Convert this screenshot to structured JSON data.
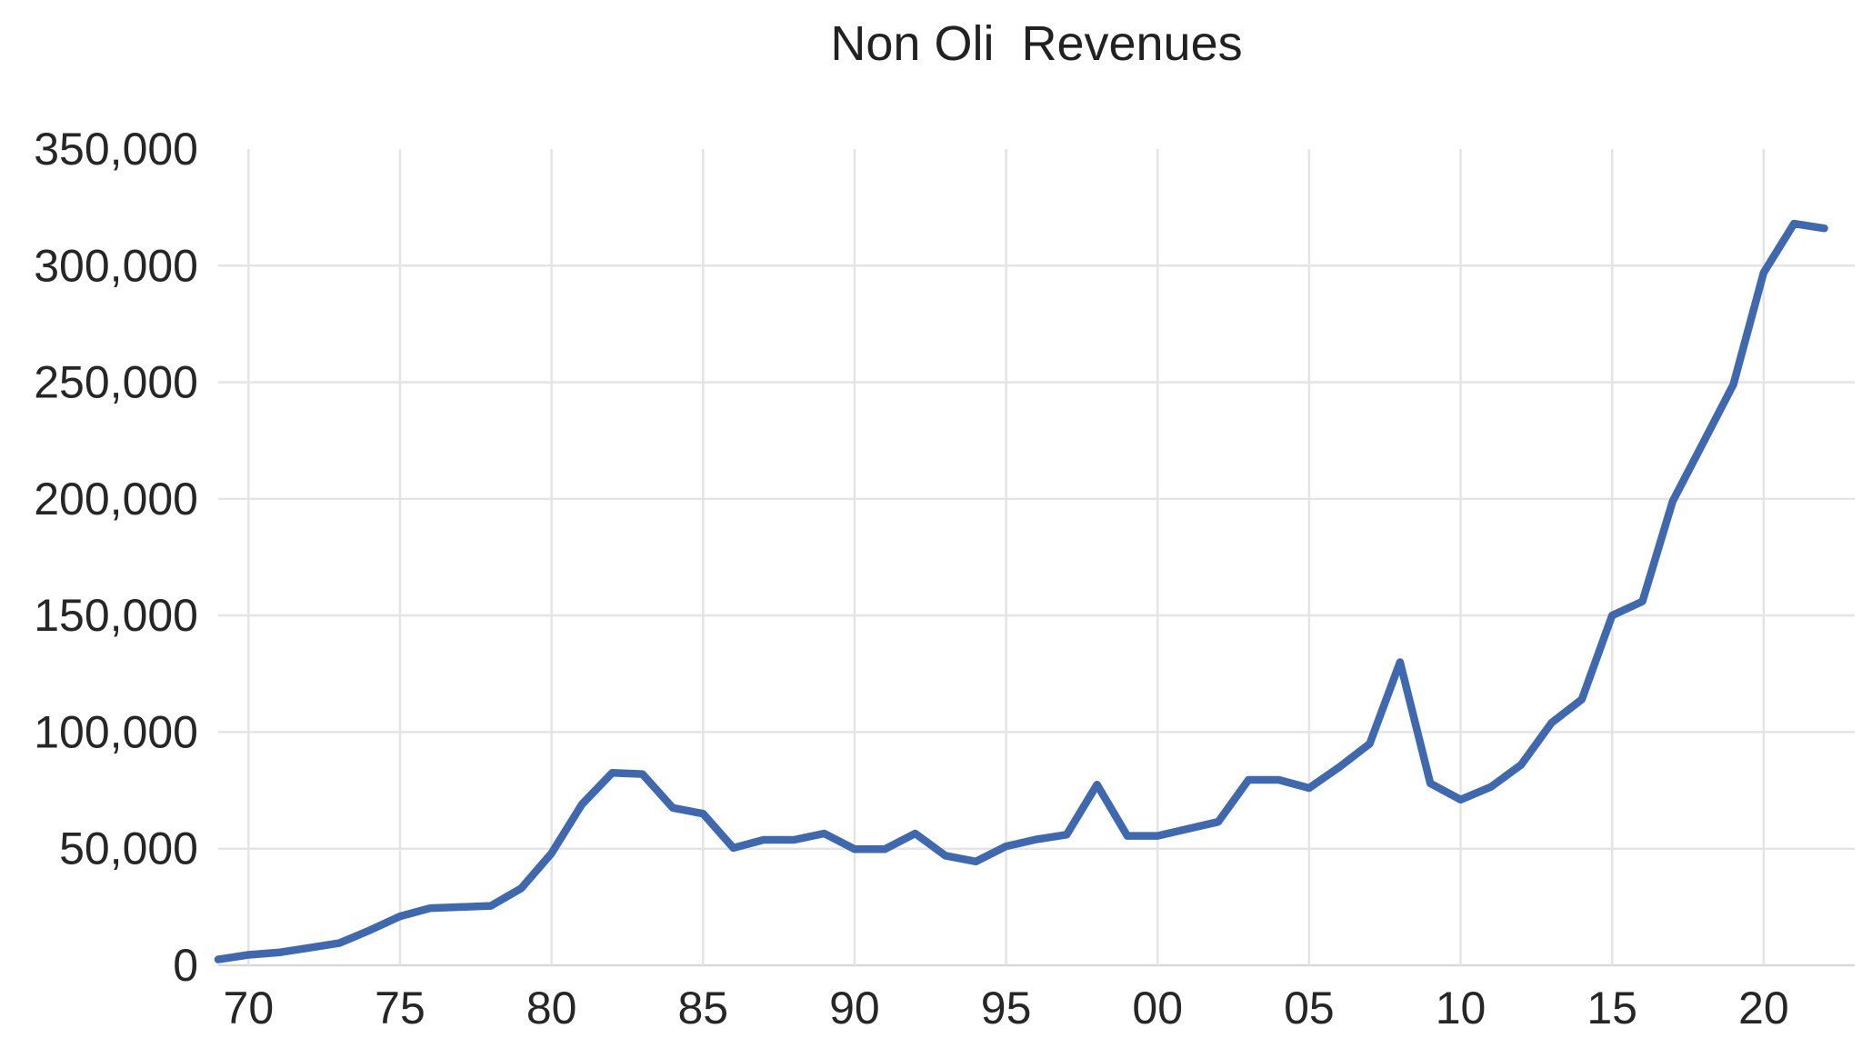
{
  "chart_data": {
    "type": "line",
    "title": "Non Oli  Revenues",
    "xlabel": "",
    "ylabel": "",
    "legend": false,
    "grid": true,
    "xlim": [
      1969,
      2022
    ],
    "ylim": [
      0,
      350000
    ],
    "x": [
      1969,
      1970,
      1971,
      1972,
      1973,
      1974,
      1975,
      1976,
      1977,
      1978,
      1979,
      1980,
      1981,
      1982,
      1983,
      1984,
      1985,
      1986,
      1987,
      1988,
      1989,
      1990,
      1991,
      1992,
      1993,
      1994,
      1995,
      1996,
      1997,
      1998,
      1999,
      2000,
      2001,
      2002,
      2003,
      2004,
      2005,
      2006,
      2007,
      2008,
      2009,
      2010,
      2011,
      2012,
      2013,
      2014,
      2015,
      2016,
      2017,
      2018,
      2019,
      2020,
      2021,
      2022
    ],
    "series": [
      {
        "name": "Non Oli Revenues",
        "values": [
          2500,
          4500,
          5500,
          7500,
          9500,
          15000,
          21000,
          24500,
          25000,
          25500,
          33000,
          48000,
          69000,
          82500,
          82000,
          67500,
          65000,
          50300,
          53800,
          53800,
          56500,
          49800,
          49800,
          56500,
          47000,
          44500,
          51000,
          54000,
          56000,
          77500,
          55500,
          55500,
          58500,
          61500,
          79500,
          79500,
          76000,
          85000,
          95000,
          130000,
          78000,
          71000,
          76500,
          86000,
          104000,
          114000,
          150000,
          156000,
          199000,
          224000,
          249000,
          297000,
          318000,
          316000
        ]
      }
    ],
    "x_tick_years": [
      1970,
      1975,
      1980,
      1985,
      1990,
      1995,
      2000,
      2005,
      2010,
      2015,
      2020
    ],
    "x_tick_labels": [
      "70",
      "75",
      "80",
      "85",
      "90",
      "95",
      "00",
      "05",
      "10",
      "15",
      "20"
    ],
    "y_tick_values": [
      0,
      50000,
      100000,
      150000,
      200000,
      250000,
      300000,
      350000
    ],
    "y_tick_labels": [
      "0",
      "50,000",
      "100,000",
      "150,000",
      "200,000",
      "250,000",
      "300,000",
      "350,000"
    ],
    "colors": {
      "line": "#3E68B0",
      "gridline": "#E4E4E4",
      "axis_line": "#D8D8D8",
      "text": "#262626",
      "title_text": "#212121",
      "background": "#FFFFFF"
    }
  }
}
